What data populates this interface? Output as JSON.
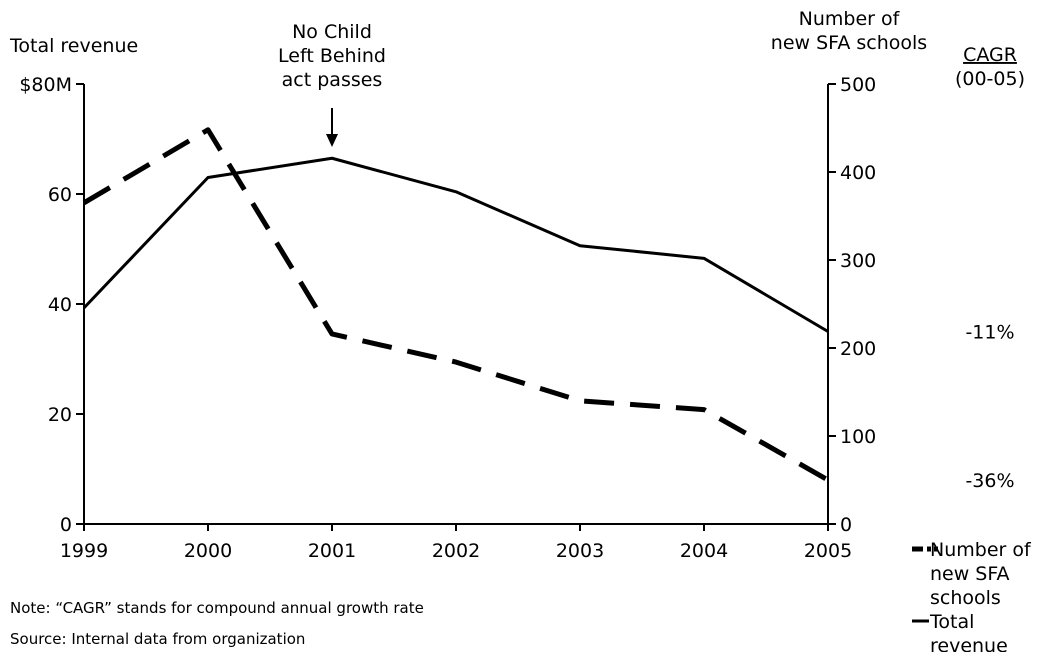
{
  "chart_data": {
    "type": "line",
    "left_axis_title": "Total revenue",
    "right_axis_title_lines": [
      "Number of",
      "new SFA schools"
    ],
    "x": [
      "1999",
      "2000",
      "2001",
      "2002",
      "2003",
      "2004",
      "2005"
    ],
    "left_ylim": [
      0,
      80
    ],
    "left_ticks": [
      "0",
      "20",
      "40",
      "60",
      "$80M"
    ],
    "right_ylim": [
      0,
      500
    ],
    "right_ticks": [
      "0",
      "100",
      "200",
      "300",
      "400",
      "500"
    ],
    "series": [
      {
        "name": "Total revenue",
        "axis": "left",
        "style": "solid",
        "values": [
          39.3,
          63,
          66.5,
          60.4,
          50.6,
          48.3,
          35
        ]
      },
      {
        "name": "Number of new SFA schools",
        "axis": "right",
        "style": "dashed",
        "values": [
          365,
          448,
          216,
          184,
          140,
          130,
          50
        ]
      }
    ],
    "annotation": {
      "x": "2001",
      "lines": [
        "No Child",
        "Left Behind",
        "act passes"
      ]
    },
    "cagr": {
      "header_lines": [
        "CAGR",
        "(00-05)"
      ],
      "values": [
        "-11%",
        "-36%"
      ]
    },
    "legend": [
      {
        "style": "dashed",
        "label_lines": [
          "Number of",
          "new SFA",
          "schools"
        ]
      },
      {
        "style": "solid",
        "label_lines": [
          "Total",
          "revenue"
        ]
      }
    ]
  },
  "footer": {
    "note": "Note: “CAGR” stands for compound annual growth rate",
    "source": "Source: Internal data from organization"
  }
}
